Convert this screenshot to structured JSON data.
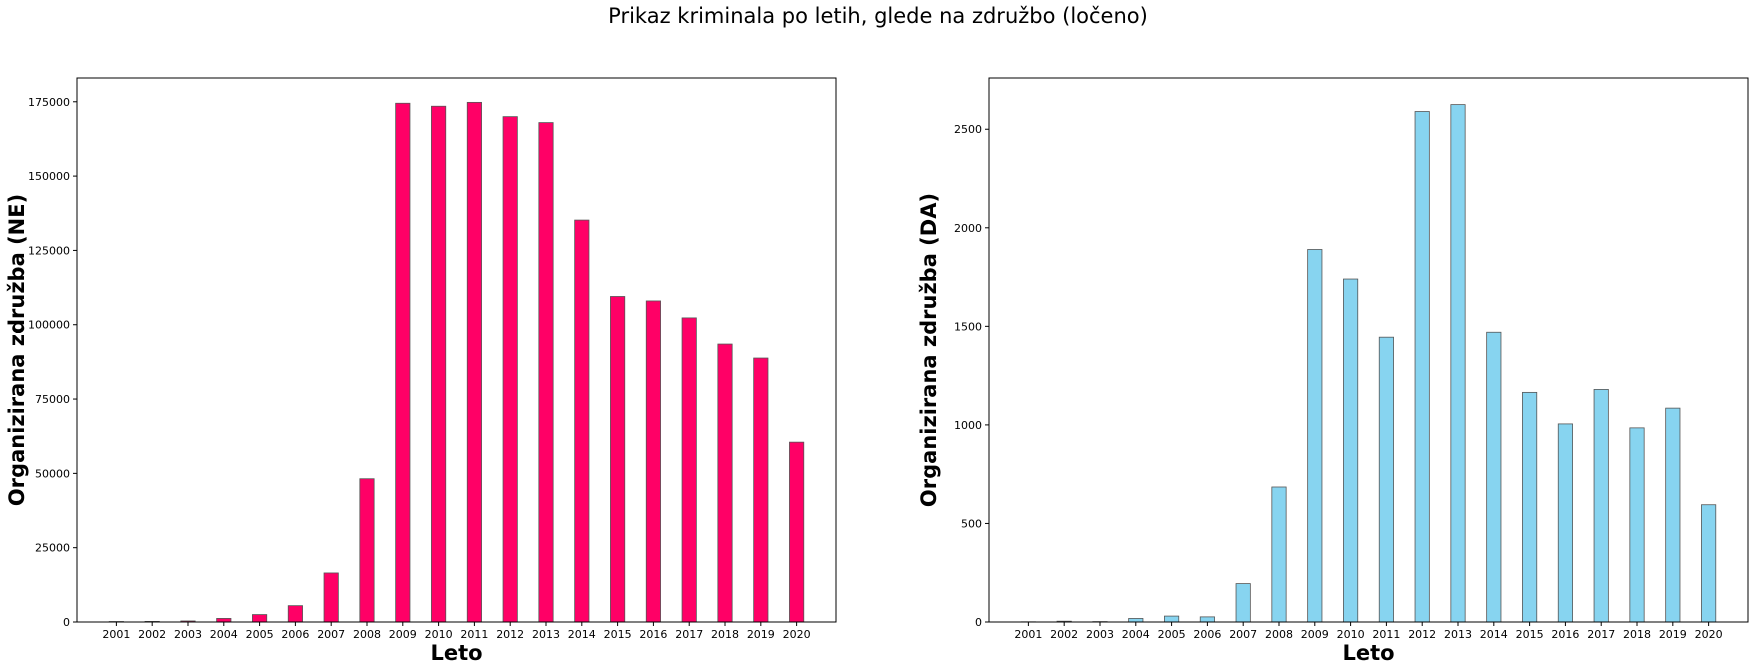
{
  "suptitle": "Prikaz kriminala po letih, glede na združbo (ločeno)",
  "chart_data": [
    {
      "type": "bar",
      "title": "",
      "xlabel": "Leto",
      "ylabel": "Organizirana združba (NE)",
      "color": "#ff0066",
      "edge_color": "#555555",
      "categories": [
        "2001",
        "2002",
        "2003",
        "2004",
        "2005",
        "2006",
        "2007",
        "2008",
        "2009",
        "2010",
        "2011",
        "2012",
        "2013",
        "2014",
        "2015",
        "2016",
        "2017",
        "2018",
        "2019",
        "2020"
      ],
      "values": [
        150,
        200,
        350,
        1200,
        2500,
        5500,
        16500,
        48200,
        174500,
        173500,
        174800,
        170000,
        168000,
        135200,
        109500,
        108000,
        102300,
        93500,
        88800,
        60500
      ],
      "ylim": [
        0,
        183000
      ],
      "yticks": [
        0,
        25000,
        50000,
        75000,
        100000,
        125000,
        150000,
        175000
      ],
      "grid": false,
      "legend": "none"
    },
    {
      "type": "bar",
      "title": "",
      "xlabel": "Leto",
      "ylabel": "Organizirana združba (DA)",
      "color": "#87d4f0",
      "edge_color": "#555555",
      "categories": [
        "2001",
        "2002",
        "2003",
        "2004",
        "2005",
        "2006",
        "2007",
        "2008",
        "2009",
        "2010",
        "2011",
        "2012",
        "2013",
        "2014",
        "2015",
        "2016",
        "2017",
        "2018",
        "2019",
        "2020"
      ],
      "values": [
        1,
        4,
        2,
        18,
        30,
        26,
        195,
        685,
        1890,
        1740,
        1445,
        2590,
        2625,
        1470,
        1165,
        1005,
        1180,
        985,
        1085,
        595
      ],
      "ylim": [
        0,
        2760
      ],
      "yticks": [
        0,
        500,
        1000,
        1500,
        2000,
        2500
      ],
      "grid": false,
      "legend": "none"
    }
  ]
}
